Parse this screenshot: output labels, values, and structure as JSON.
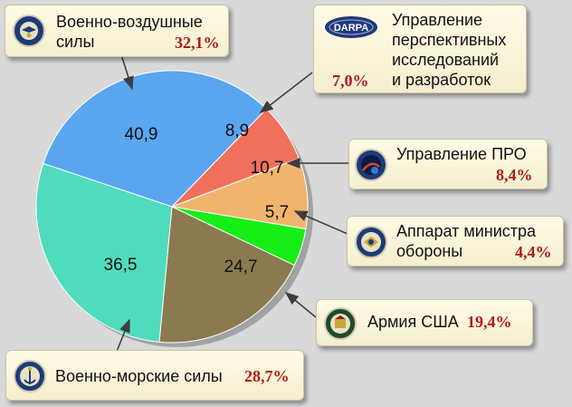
{
  "chart_data": {
    "type": "pie",
    "slices": [
      {
        "label": "40,9",
        "value": 40.9,
        "color": "#5aa6ef"
      },
      {
        "label": "8,9",
        "value": 8.9,
        "color": "#f0705c"
      },
      {
        "label": "10,7",
        "value": 10.7,
        "color": "#f1b46e"
      },
      {
        "label": "5,7",
        "value": 5.7,
        "color": "#17ee17"
      },
      {
        "label": "24,7",
        "value": 24.7,
        "color": "#8b7a50"
      },
      {
        "label": "36,5",
        "value": 36.5,
        "color": "#4fdcbd"
      }
    ]
  },
  "legend": [
    {
      "name_lines": [
        "Военно-воздушные",
        "силы"
      ],
      "percent": "32,1%",
      "icon": "air-force-seal-icon"
    },
    {
      "name_lines": [
        "Управление",
        "перспективных",
        "исследований",
        "и разработок"
      ],
      "percent": "7,0%",
      "icon": "darpa-logo",
      "logo_text": "DARPA"
    },
    {
      "name_lines": [
        "Управление ПРО"
      ],
      "percent": "8,4%",
      "icon": "missile-defense-seal-icon"
    },
    {
      "name_lines": [
        "Аппарат министра",
        "обороны"
      ],
      "percent": "4,4%",
      "icon": "defense-secretary-seal-icon"
    },
    {
      "name_lines": [
        "Армия США"
      ],
      "percent": "19,4%",
      "icon": "army-seal-icon"
    },
    {
      "name_lines": [
        "Военно-морские силы"
      ],
      "percent": "28,7%",
      "icon": "navy-seal-icon"
    }
  ]
}
